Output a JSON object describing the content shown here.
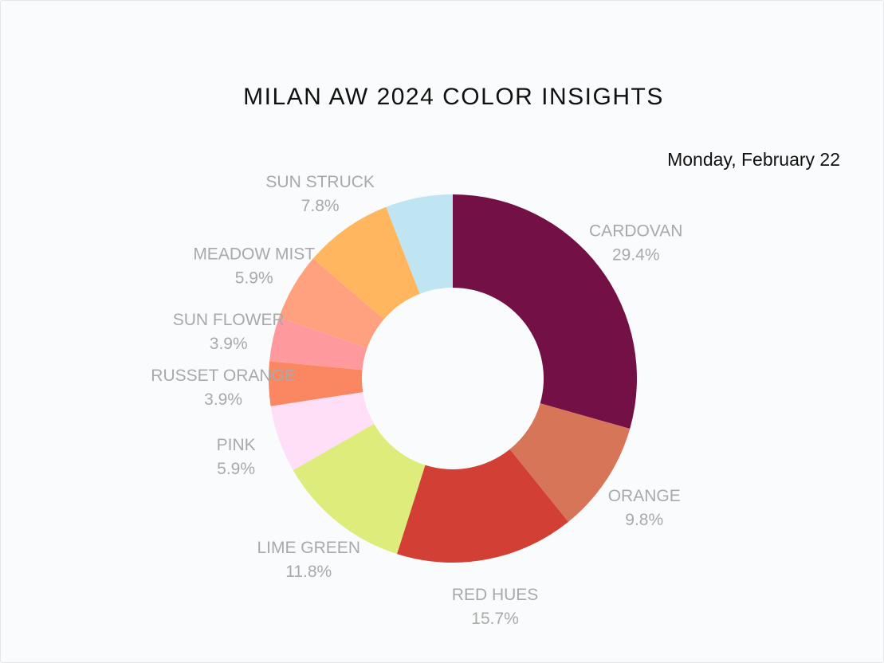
{
  "page": {
    "title": "MILAN AW 2024 COLOR INSIGHTS",
    "date": "Monday, February 22"
  },
  "chart_data": {
    "type": "pie",
    "variant": "donut",
    "title": "MILAN AW 2024 COLOR INSIGHTS",
    "direction": "clockwise",
    "label_color": "#a9a9a9",
    "slices": [
      {
        "label": "CARDOVAN",
        "value": 29.4,
        "value_label": "29.4%",
        "color": "#731046"
      },
      {
        "label": "ORANGE",
        "value": 9.8,
        "value_label": "9.8%",
        "color": "#d77558"
      },
      {
        "label": "RED HUES",
        "value": 15.7,
        "value_label": "15.7%",
        "color": "#d23f35"
      },
      {
        "label": "LIME GREEN",
        "value": 11.8,
        "value_label": "11.8%",
        "color": "#deec7b"
      },
      {
        "label": "PINK",
        "value": 5.9,
        "value_label": "5.9%",
        "color": "#ffdef8"
      },
      {
        "label": "RUSSET ORANGE",
        "value": 3.9,
        "value_label": "3.9%",
        "color": "#fa8762"
      },
      {
        "label": "SUN FLOWER",
        "value": 3.9,
        "value_label": "3.9%",
        "color": "#fe9a9e"
      },
      {
        "label": "MEADOW MIST",
        "value": 5.9,
        "value_label": "5.9%",
        "color": "#ffa17e"
      },
      {
        "label": "SUN STRUCK",
        "value": 7.8,
        "value_label": "7.8%",
        "color": "#ffb65f"
      },
      {
        "label": "",
        "value": 5.9,
        "value_label": "",
        "color": "#bfe5f3"
      }
    ]
  }
}
